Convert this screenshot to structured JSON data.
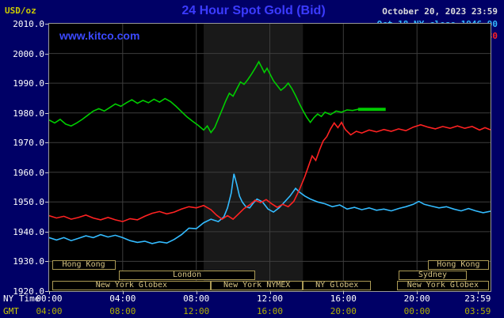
{
  "header": {
    "unit": "USD/oz",
    "title": "24 Hour Spot Gold (Bid)",
    "date": "October 20, 2023 23:59",
    "watermark": "www.kitco.com",
    "legend": [
      {
        "id": "oct18",
        "label": "Oct 18 NY close 1946.90",
        "color": "#33bbff",
        "dash_weight": 2
      },
      {
        "id": "oct19",
        "label": "Oct 19 NY close 1974.30",
        "color": "#ff2222",
        "dash_weight": 2
      },
      {
        "id": "oct20",
        "label": "Oct 20 Last 1981.20",
        "color": "#00cc00",
        "dash_weight": 3
      }
    ]
  },
  "axes": {
    "ny_label": "NY Time",
    "gmt_label": "GMT",
    "y_ticks": [
      "2010.0",
      "2000.0",
      "1990.0",
      "1980.0",
      "1970.0",
      "1960.0",
      "1950.0",
      "1940.0",
      "1930.0",
      "1920.0"
    ],
    "ny_ticks": [
      "00:00",
      "04:00",
      "08:00",
      "12:00",
      "16:00",
      "20:00",
      "23:59"
    ],
    "gmt_ticks": [
      "04:00",
      "08:00",
      "12:00",
      "16:00",
      "20:00",
      "00:00",
      "03:59"
    ]
  },
  "sessions": [
    {
      "label": "Hong Kong",
      "row": 0,
      "start": 0.15,
      "end": 3.6
    },
    {
      "label": "London",
      "row": 1,
      "start": 3.8,
      "end": 11.2
    },
    {
      "label": "New York Globex",
      "row": 2,
      "start": 0.15,
      "end": 8.8
    },
    {
      "label": "New York NYMEX",
      "row": 2,
      "start": 8.8,
      "end": 13.8
    },
    {
      "label": "NY Globex",
      "row": 2,
      "start": 13.8,
      "end": 17.5
    },
    {
      "label": "Sydney",
      "row": 1,
      "start": 19.0,
      "end": 22.7
    },
    {
      "label": "Hong Kong",
      "row": 0,
      "start": 20.6,
      "end": 23.9
    },
    {
      "label": "New York Globex",
      "row": 2,
      "start": 18.9,
      "end": 23.92
    }
  ],
  "chart_data": {
    "type": "line",
    "title": "24 Hour Spot Gold (Bid)",
    "xlabel": "NY Time (hours)",
    "ylabel": "USD/oz",
    "ylim": [
      1920,
      2010
    ],
    "xlim_hours": [
      0,
      24
    ],
    "grid": true,
    "nymex_band_hours": [
      8.4,
      13.8
    ],
    "legend_position": "top-right",
    "series": [
      {
        "id": "oct18",
        "name": "Oct 18 NY close",
        "close": 1946.9,
        "color": "#33bbff",
        "points": [
          [
            0,
            1938
          ],
          [
            0.4,
            1937.2
          ],
          [
            0.8,
            1938
          ],
          [
            1.2,
            1937
          ],
          [
            1.6,
            1937.8
          ],
          [
            2,
            1938.6
          ],
          [
            2.4,
            1938
          ],
          [
            2.8,
            1939
          ],
          [
            3.2,
            1938.2
          ],
          [
            3.6,
            1938.8
          ],
          [
            4,
            1938
          ],
          [
            4.4,
            1937
          ],
          [
            4.8,
            1936.4
          ],
          [
            5.2,
            1936.8
          ],
          [
            5.6,
            1936
          ],
          [
            6,
            1936.6
          ],
          [
            6.4,
            1936.2
          ],
          [
            6.8,
            1937.4
          ],
          [
            7.2,
            1939
          ],
          [
            7.6,
            1941.2
          ],
          [
            8,
            1941
          ],
          [
            8.4,
            1943
          ],
          [
            8.8,
            1944.2
          ],
          [
            9.2,
            1943.4
          ],
          [
            9.5,
            1945
          ],
          [
            9.7,
            1948
          ],
          [
            9.9,
            1953
          ],
          [
            10.05,
            1959.5
          ],
          [
            10.2,
            1956
          ],
          [
            10.35,
            1952
          ],
          [
            10.5,
            1950
          ],
          [
            10.7,
            1948.4
          ],
          [
            10.9,
            1948
          ],
          [
            11.1,
            1949.6
          ],
          [
            11.3,
            1951
          ],
          [
            11.6,
            1950
          ],
          [
            11.9,
            1947.6
          ],
          [
            12.2,
            1946.6
          ],
          [
            12.5,
            1948
          ],
          [
            12.8,
            1950
          ],
          [
            13.1,
            1952
          ],
          [
            13.4,
            1954.6
          ],
          [
            13.6,
            1953.4
          ],
          [
            13.9,
            1952
          ],
          [
            14.2,
            1951
          ],
          [
            14.6,
            1950
          ],
          [
            15,
            1949.4
          ],
          [
            15.4,
            1948.4
          ],
          [
            15.8,
            1949
          ],
          [
            16.2,
            1947.6
          ],
          [
            16.6,
            1948.2
          ],
          [
            17,
            1947.4
          ],
          [
            17.4,
            1948
          ],
          [
            17.8,
            1947.2
          ],
          [
            18.2,
            1947.6
          ],
          [
            18.6,
            1947
          ],
          [
            19,
            1947.8
          ],
          [
            19.4,
            1948.4
          ],
          [
            19.8,
            1949.2
          ],
          [
            20.1,
            1950.2
          ],
          [
            20.4,
            1949.2
          ],
          [
            20.8,
            1948.6
          ],
          [
            21.2,
            1948
          ],
          [
            21.6,
            1948.4
          ],
          [
            22,
            1947.6
          ],
          [
            22.4,
            1947
          ],
          [
            22.8,
            1947.8
          ],
          [
            23.2,
            1947
          ],
          [
            23.6,
            1946.4
          ],
          [
            24,
            1946.9
          ]
        ]
      },
      {
        "id": "oct19",
        "name": "Oct 19 NY close",
        "close": 1974.3,
        "color": "#ff2222",
        "points": [
          [
            0,
            1945.4
          ],
          [
            0.4,
            1944.6
          ],
          [
            0.8,
            1945.2
          ],
          [
            1.2,
            1944.2
          ],
          [
            1.6,
            1944.8
          ],
          [
            2,
            1945.6
          ],
          [
            2.4,
            1944.6
          ],
          [
            2.8,
            1944
          ],
          [
            3.2,
            1944.8
          ],
          [
            3.6,
            1944
          ],
          [
            4,
            1943.4
          ],
          [
            4.4,
            1944.4
          ],
          [
            4.8,
            1944
          ],
          [
            5.2,
            1945.2
          ],
          [
            5.6,
            1946.2
          ],
          [
            6,
            1946.8
          ],
          [
            6.4,
            1946
          ],
          [
            6.8,
            1946.6
          ],
          [
            7.2,
            1947.6
          ],
          [
            7.6,
            1948.4
          ],
          [
            8,
            1948
          ],
          [
            8.4,
            1948.8
          ],
          [
            8.8,
            1947.4
          ],
          [
            9.1,
            1945.6
          ],
          [
            9.4,
            1944.2
          ],
          [
            9.7,
            1945.4
          ],
          [
            10,
            1944.2
          ],
          [
            10.3,
            1946
          ],
          [
            10.6,
            1947.8
          ],
          [
            10.9,
            1949
          ],
          [
            11.2,
            1950.6
          ],
          [
            11.5,
            1949.8
          ],
          [
            11.8,
            1950.8
          ],
          [
            12.1,
            1949.4
          ],
          [
            12.4,
            1948.2
          ],
          [
            12.7,
            1949.2
          ],
          [
            13,
            1948.4
          ],
          [
            13.3,
            1950.2
          ],
          [
            13.6,
            1954
          ],
          [
            13.9,
            1958.5
          ],
          [
            14.1,
            1962
          ],
          [
            14.3,
            1965.5
          ],
          [
            14.5,
            1964
          ],
          [
            14.7,
            1967.5
          ],
          [
            14.9,
            1970.5
          ],
          [
            15.1,
            1972
          ],
          [
            15.3,
            1974.6
          ],
          [
            15.5,
            1976.6
          ],
          [
            15.7,
            1975
          ],
          [
            15.9,
            1976.8
          ],
          [
            16.1,
            1974.4
          ],
          [
            16.4,
            1972.6
          ],
          [
            16.7,
            1973.8
          ],
          [
            17,
            1973.2
          ],
          [
            17.4,
            1974.2
          ],
          [
            17.8,
            1973.6
          ],
          [
            18.2,
            1974.4
          ],
          [
            18.6,
            1973.8
          ],
          [
            19,
            1974.6
          ],
          [
            19.4,
            1974
          ],
          [
            19.8,
            1975.2
          ],
          [
            20.2,
            1976
          ],
          [
            20.6,
            1975.2
          ],
          [
            21,
            1974.6
          ],
          [
            21.4,
            1975.4
          ],
          [
            21.8,
            1974.8
          ],
          [
            22.2,
            1975.6
          ],
          [
            22.6,
            1974.8
          ],
          [
            23,
            1975.4
          ],
          [
            23.4,
            1974.2
          ],
          [
            23.7,
            1975
          ],
          [
            24,
            1974.3
          ]
        ]
      },
      {
        "id": "oct20",
        "name": "Oct 20 Last",
        "last": 1981.2,
        "color": "#00cc00",
        "points": [
          [
            0,
            1977.6
          ],
          [
            0.3,
            1976.6
          ],
          [
            0.6,
            1977.8
          ],
          [
            0.9,
            1976.2
          ],
          [
            1.2,
            1975.6
          ],
          [
            1.5,
            1976.6
          ],
          [
            1.8,
            1977.8
          ],
          [
            2.1,
            1979.2
          ],
          [
            2.4,
            1980.6
          ],
          [
            2.7,
            1981.4
          ],
          [
            3,
            1980.6
          ],
          [
            3.3,
            1981.8
          ],
          [
            3.6,
            1983
          ],
          [
            3.9,
            1982.2
          ],
          [
            4.2,
            1983.4
          ],
          [
            4.5,
            1984.4
          ],
          [
            4.8,
            1983.2
          ],
          [
            5.1,
            1984.2
          ],
          [
            5.4,
            1983.4
          ],
          [
            5.7,
            1984.6
          ],
          [
            6,
            1983.6
          ],
          [
            6.3,
            1984.8
          ],
          [
            6.6,
            1983.8
          ],
          [
            6.9,
            1982.2
          ],
          [
            7.2,
            1980.4
          ],
          [
            7.5,
            1978.6
          ],
          [
            7.8,
            1977.2
          ],
          [
            8.1,
            1975.8
          ],
          [
            8.4,
            1974.2
          ],
          [
            8.6,
            1975.6
          ],
          [
            8.8,
            1973.4
          ],
          [
            9,
            1975
          ],
          [
            9.2,
            1978
          ],
          [
            9.4,
            1981
          ],
          [
            9.6,
            1984
          ],
          [
            9.8,
            1986.6
          ],
          [
            10,
            1985.6
          ],
          [
            10.2,
            1988
          ],
          [
            10.4,
            1990.4
          ],
          [
            10.6,
            1989.6
          ],
          [
            10.8,
            1991.2
          ],
          [
            11,
            1993
          ],
          [
            11.2,
            1995
          ],
          [
            11.4,
            1997.2
          ],
          [
            11.55,
            1995.4
          ],
          [
            11.7,
            1993.6
          ],
          [
            11.85,
            1995
          ],
          [
            12,
            1993.2
          ],
          [
            12.2,
            1990.8
          ],
          [
            12.4,
            1989.2
          ],
          [
            12.6,
            1987.6
          ],
          [
            12.8,
            1988.6
          ],
          [
            13,
            1990
          ],
          [
            13.2,
            1988.2
          ],
          [
            13.4,
            1985.8
          ],
          [
            13.6,
            1983.2
          ],
          [
            13.8,
            1980.8
          ],
          [
            14,
            1978.6
          ],
          [
            14.2,
            1976.8
          ],
          [
            14.4,
            1978.4
          ],
          [
            14.6,
            1979.6
          ],
          [
            14.8,
            1978.8
          ],
          [
            15,
            1980.2
          ],
          [
            15.3,
            1979.4
          ],
          [
            15.6,
            1980.6
          ],
          [
            15.9,
            1980.2
          ],
          [
            16.2,
            1981
          ],
          [
            16.5,
            1980.8
          ],
          [
            16.8,
            1981.2
          ],
          [
            17.2,
            1981.2
          ],
          [
            17.6,
            1981.2
          ]
        ]
      }
    ],
    "last_marker": {
      "price": 1981.2,
      "start": 16.8,
      "end": 18.3,
      "color": "#00cc00"
    }
  }
}
